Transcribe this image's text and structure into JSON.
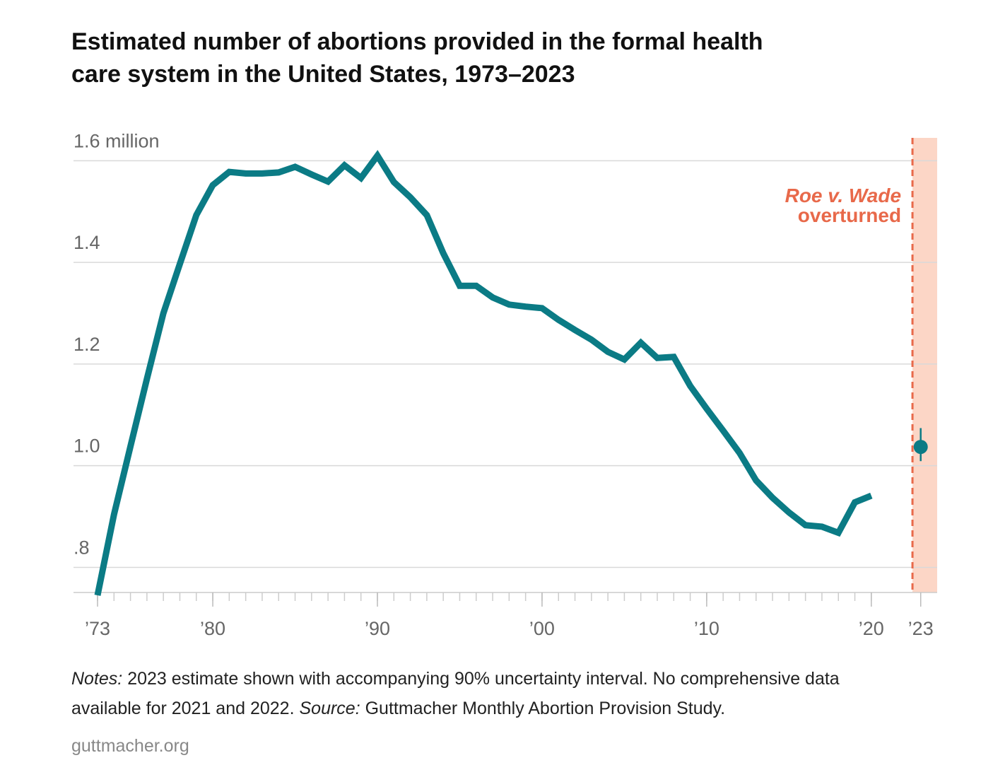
{
  "chart_data": {
    "type": "line",
    "title": [
      "Estimated number of abortions provided in the formal health",
      "care system in the United States, 1973–2023"
    ],
    "x": [
      1973,
      1974,
      1975,
      1976,
      1977,
      1978,
      1979,
      1980,
      1981,
      1982,
      1983,
      1984,
      1985,
      1986,
      1987,
      1988,
      1989,
      1990,
      1991,
      1992,
      1993,
      1994,
      1995,
      1996,
      1997,
      1998,
      1999,
      2000,
      2001,
      2002,
      2003,
      2004,
      2005,
      2006,
      2007,
      2008,
      2009,
      2010,
      2011,
      2012,
      2013,
      2014,
      2015,
      2016,
      2017,
      2018,
      2019,
      2020
    ],
    "series": [
      {
        "color": "#0b7b85",
        "values": [
          0.745,
          0.904,
          1.038,
          1.171,
          1.3,
          1.397,
          1.493,
          1.552,
          1.578,
          1.575,
          1.575,
          1.577,
          1.588,
          1.573,
          1.559,
          1.591,
          1.566,
          1.61,
          1.558,
          1.528,
          1.493,
          1.418,
          1.354,
          1.354,
          1.331,
          1.317,
          1.313,
          1.31,
          1.287,
          1.267,
          1.248,
          1.224,
          1.209,
          1.242,
          1.212,
          1.214,
          1.157,
          1.112,
          1.069,
          1.025,
          0.971,
          0.937,
          0.908,
          0.883,
          0.88,
          0.868,
          0.928,
          0.941
        ]
      }
    ],
    "estimate": {
      "x": 2023,
      "value": 1.037,
      "low": 1.009,
      "high": 1.074,
      "color": "#0b7b85"
    },
    "annotation": {
      "text": [
        "Roe v. Wade",
        "overturned"
      ],
      "x": 2022.5,
      "color": "#e8694a",
      "shade": "#fcd6c6"
    },
    "xlim": [
      1973,
      2024
    ],
    "ylim": [
      0.745,
      1.645
    ],
    "xticks": [
      {
        "value": 1973,
        "label": "’73"
      },
      {
        "value": 1980,
        "label": "’80"
      },
      {
        "value": 1990,
        "label": "’90"
      },
      {
        "value": 2000,
        "label": "’00"
      },
      {
        "value": 2010,
        "label": "’10"
      },
      {
        "value": 2020,
        "label": "’20"
      },
      {
        "value": 2023,
        "label": "’23"
      }
    ],
    "yticks": [
      {
        "value": 0.8,
        "label": ".8"
      },
      {
        "value": 1,
        "label": "1.0"
      },
      1.2,
      1.4,
      {
        "value": 1.6,
        "label": "1.6 million"
      }
    ],
    "grid": true,
    "notes": [
      {
        "text": "Notes:",
        "italic": true
      },
      {
        "text": " 2023 estimate shown with accompanying 90% uncertainty interval. No comprehensive data"
      }
    ],
    "notes2": [
      {
        "text": "available for 2021 and 2022. "
      },
      {
        "text": "Source:",
        "italic": true
      },
      {
        "text": " Guttmacher Monthly Abortion Provision Study."
      }
    ],
    "footer": "guttmacher.org"
  }
}
